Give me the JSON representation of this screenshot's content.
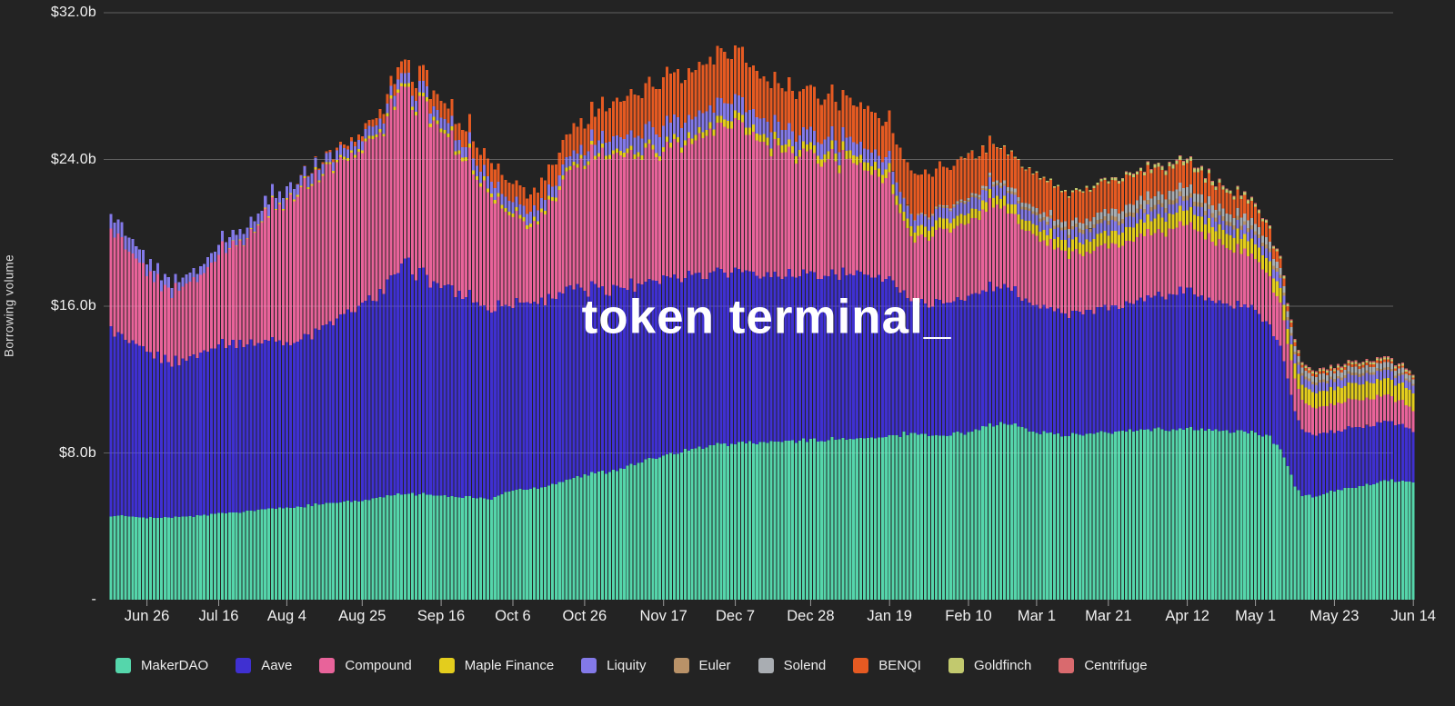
{
  "watermark": {
    "text": "token terminal_"
  },
  "y_axis": {
    "title": "Borrowing volume",
    "ticks": [
      {
        "label": "$32.0b",
        "value": 32
      },
      {
        "label": "$24.0b",
        "value": 24
      },
      {
        "label": "$16.0b",
        "value": 16
      },
      {
        "label": "$8.0b",
        "value": 8
      },
      {
        "label": "-",
        "value": 0
      }
    ]
  },
  "x_axis": {
    "ticks": [
      {
        "label": "Jun 26",
        "day": 10
      },
      {
        "label": "Jul 16",
        "day": 30
      },
      {
        "label": "Aug 4",
        "day": 49
      },
      {
        "label": "Aug 25",
        "day": 70
      },
      {
        "label": "Sep 16",
        "day": 92
      },
      {
        "label": "Oct 6",
        "day": 112
      },
      {
        "label": "Oct 26",
        "day": 132
      },
      {
        "label": "Nov 17",
        "day": 154
      },
      {
        "label": "Dec 7",
        "day": 174
      },
      {
        "label": "Dec 28",
        "day": 195
      },
      {
        "label": "Jan 19",
        "day": 217
      },
      {
        "label": "Feb 10",
        "day": 239
      },
      {
        "label": "Mar 1",
        "day": 258
      },
      {
        "label": "Mar 21",
        "day": 278
      },
      {
        "label": "Apr 12",
        "day": 300
      },
      {
        "label": "May 1",
        "day": 319
      },
      {
        "label": "May 23",
        "day": 341
      },
      {
        "label": "Jun 14",
        "day": 363
      }
    ]
  },
  "chart_data": {
    "type": "bar",
    "variant": "stacked-daily-bars",
    "title": "token terminal_",
    "ylabel": "Borrowing volume",
    "unit": "USD billions",
    "ylim": [
      0,
      32
    ],
    "grid": "horizontal",
    "legend_position": "bottom",
    "days": 364,
    "x_range_labels": [
      "Jun 26",
      "Jul 16",
      "Aug 4",
      "Aug 25",
      "Sep 16",
      "Oct 6",
      "Oct 26",
      "Nov 17",
      "Dec 7",
      "Dec 28",
      "Jan 19",
      "Feb 10",
      "Mar 1",
      "Mar 21",
      "Apr 12",
      "May 1",
      "May 23",
      "Jun 14"
    ],
    "series": [
      {
        "name": "MakerDAO",
        "color": "#55d6ab"
      },
      {
        "name": "Aave",
        "color": "#3f30d1"
      },
      {
        "name": "Compound",
        "color": "#e8639a"
      },
      {
        "name": "Maple Finance",
        "color": "#e3cd1d"
      },
      {
        "name": "Liquity",
        "color": "#8379e8"
      },
      {
        "name": "Euler",
        "color": "#b99268"
      },
      {
        "name": "Solend",
        "color": "#a9adb2"
      },
      {
        "name": "BENQI",
        "color": "#e55a22"
      },
      {
        "name": "Goldfinch",
        "color": "#c2c96e"
      },
      {
        "name": "Centrifuge",
        "color": "#d96a6e"
      }
    ],
    "keyframes_note": "v = [MakerDAO, Aave, Compound, Maple Finance, Liquity, Euler, Solend, BENQI, Goldfinch, Centrifuge] in $ billions at day index d (day 0 = left edge, ~Jun 16; day 363 = Jun 14). Daily bars are linearly interpolated between keyframes.",
    "keyframes": [
      {
        "d": 0,
        "v": [
          4.6,
          10.3,
          5.6,
          0.0,
          0.85,
          0,
          0,
          0.0,
          0.0,
          0.0
        ]
      },
      {
        "d": 3,
        "v": [
          4.55,
          9.7,
          5.1,
          0.0,
          0.8,
          0,
          0,
          0.0,
          0.0,
          0.0
        ]
      },
      {
        "d": 7,
        "v": [
          4.5,
          9.15,
          4.5,
          0.0,
          0.7,
          0,
          0,
          0.0,
          0.0,
          0.0
        ]
      },
      {
        "d": 13,
        "v": [
          4.45,
          8.75,
          4.1,
          0.0,
          0.6,
          0,
          0,
          0.0,
          0.0,
          0.0
        ]
      },
      {
        "d": 19,
        "v": [
          4.5,
          8.5,
          3.9,
          0.0,
          0.5,
          0,
          0,
          0.0,
          0.0,
          0.0
        ]
      },
      {
        "d": 25,
        "v": [
          4.6,
          8.9,
          4.3,
          0.0,
          0.5,
          0,
          0,
          0.0,
          0.0,
          0.0
        ]
      },
      {
        "d": 30,
        "v": [
          4.7,
          9.3,
          4.9,
          0.0,
          0.55,
          0,
          0,
          0.0,
          0.0,
          0.0
        ]
      },
      {
        "d": 38,
        "v": [
          4.85,
          9.25,
          5.9,
          0.04,
          0.6,
          0,
          0,
          0.0,
          0.0,
          0.0
        ]
      },
      {
        "d": 49,
        "v": [
          5.0,
          9.0,
          7.9,
          0.08,
          0.6,
          0,
          0,
          0.0,
          0.0,
          0.0
        ]
      },
      {
        "d": 56,
        "v": [
          5.15,
          9.4,
          8.3,
          0.1,
          0.55,
          0,
          0,
          0.05,
          0.0,
          0.0
        ]
      },
      {
        "d": 63,
        "v": [
          5.3,
          10.0,
          8.6,
          0.12,
          0.5,
          0,
          0,
          0.15,
          0.0,
          0.0
        ]
      },
      {
        "d": 70,
        "v": [
          5.4,
          10.6,
          8.5,
          0.15,
          0.5,
          0,
          0,
          0.3,
          0.0,
          0.0
        ]
      },
      {
        "d": 76,
        "v": [
          5.6,
          11.3,
          9.0,
          0.15,
          0.55,
          0,
          0,
          0.5,
          0.0,
          0.0
        ]
      },
      {
        "d": 81,
        "v": [
          5.75,
          12.3,
          9.5,
          0.18,
          0.55,
          0,
          0,
          0.7,
          0.0,
          0.0
        ]
      },
      {
        "d": 83,
        "v": [
          5.8,
          12.6,
          9.55,
          0.2,
          0.55,
          0,
          0,
          0.75,
          0.0,
          0.0
        ]
      },
      {
        "d": 87,
        "v": [
          5.75,
          11.9,
          9.1,
          0.2,
          0.6,
          0,
          0,
          0.8,
          0.0,
          0.0
        ]
      },
      {
        "d": 92,
        "v": [
          5.7,
          11.5,
          8.7,
          0.2,
          0.6,
          0,
          0,
          0.85,
          0.0,
          0.0
        ]
      },
      {
        "d": 99,
        "v": [
          5.6,
          10.9,
          7.5,
          0.2,
          0.6,
          0,
          0,
          0.9,
          0.0,
          0.0
        ]
      },
      {
        "d": 106,
        "v": [
          5.5,
          10.4,
          6.2,
          0.2,
          0.65,
          0,
          0,
          1.0,
          0.0,
          0.0
        ]
      },
      {
        "d": 112,
        "v": [
          6.0,
          10.3,
          4.9,
          0.2,
          0.6,
          0,
          0,
          1.0,
          0.0,
          0.0
        ]
      },
      {
        "d": 116,
        "v": [
          6.0,
          10.15,
          4.1,
          0.2,
          0.6,
          0,
          0,
          0.9,
          0.0,
          0.0
        ]
      },
      {
        "d": 119,
        "v": [
          6.1,
          10.2,
          4.4,
          0.2,
          0.6,
          0,
          0,
          1.0,
          0.0,
          0.0
        ]
      },
      {
        "d": 125,
        "v": [
          6.4,
          10.3,
          5.8,
          0.2,
          0.6,
          0,
          0,
          1.2,
          0.0,
          0.0
        ]
      },
      {
        "d": 132,
        "v": [
          6.8,
          10.1,
          6.9,
          0.2,
          0.55,
          0,
          0,
          1.5,
          0.0,
          0.0
        ]
      },
      {
        "d": 139,
        "v": [
          7.0,
          10.0,
          7.3,
          0.22,
          0.7,
          0,
          0,
          1.85,
          0.0,
          0.0
        ]
      },
      {
        "d": 146,
        "v": [
          7.4,
          9.9,
          7.2,
          0.25,
          0.9,
          0,
          0,
          2.2,
          0.0,
          0.0
        ]
      },
      {
        "d": 154,
        "v": [
          7.9,
          9.8,
          7.05,
          0.25,
          1.1,
          0,
          0,
          2.55,
          0.0,
          0.0
        ]
      },
      {
        "d": 161,
        "v": [
          8.2,
          9.6,
          7.3,
          0.3,
          1.0,
          0,
          0,
          2.5,
          0.0,
          0.0
        ]
      },
      {
        "d": 168,
        "v": [
          8.4,
          9.5,
          7.7,
          0.35,
          0.95,
          0,
          0,
          2.6,
          0.0,
          0.0
        ]
      },
      {
        "d": 172,
        "v": [
          8.5,
          9.45,
          8.05,
          0.4,
          0.95,
          0,
          0,
          2.65,
          0.0,
          0.0
        ]
      },
      {
        "d": 178,
        "v": [
          8.55,
          9.3,
          7.5,
          0.4,
          0.9,
          0,
          0,
          2.45,
          0.0,
          0.0
        ]
      },
      {
        "d": 186,
        "v": [
          8.6,
          9.05,
          6.85,
          0.4,
          0.85,
          0,
          0,
          2.3,
          0.0,
          0.0
        ]
      },
      {
        "d": 195,
        "v": [
          8.7,
          9.0,
          6.4,
          0.4,
          0.8,
          0,
          0,
          2.2,
          0.0,
          0.0
        ]
      },
      {
        "d": 204,
        "v": [
          8.75,
          8.95,
          6.1,
          0.45,
          0.75,
          0,
          0,
          2.2,
          0.0,
          0.0
        ]
      },
      {
        "d": 213,
        "v": [
          8.8,
          8.9,
          5.7,
          0.45,
          0.7,
          0,
          0,
          2.15,
          0.0,
          0.0
        ]
      },
      {
        "d": 217,
        "v": [
          8.9,
          8.7,
          5.4,
          0.5,
          0.7,
          0,
          0,
          2.1,
          0.0,
          0.0
        ]
      },
      {
        "d": 219,
        "v": [
          8.95,
          8.2,
          4.6,
          0.5,
          0.68,
          0.03,
          0.0,
          2.2,
          0.0,
          0.0
        ]
      },
      {
        "d": 221,
        "v": [
          9.05,
          7.5,
          3.8,
          0.52,
          0.65,
          0.05,
          0.0,
          2.35,
          0.0,
          0.0
        ]
      },
      {
        "d": 224,
        "v": [
          9.1,
          7.25,
          3.6,
          0.55,
          0.6,
          0.05,
          0.02,
          2.35,
          0.0,
          0.0
        ]
      },
      {
        "d": 229,
        "v": [
          9.0,
          7.2,
          3.7,
          0.55,
          0.6,
          0.07,
          0.04,
          2.25,
          0.0,
          0.0
        ]
      },
      {
        "d": 232,
        "v": [
          8.9,
          7.3,
          3.9,
          0.55,
          0.6,
          0.08,
          0.06,
          2.2,
          0.0,
          0.0
        ]
      },
      {
        "d": 239,
        "v": [
          9.2,
          7.35,
          4.1,
          0.52,
          0.6,
          0.1,
          0.1,
          2.2,
          0.02,
          0.0
        ]
      },
      {
        "d": 246,
        "v": [
          9.55,
          7.5,
          4.35,
          0.5,
          0.6,
          0.12,
          0.15,
          1.85,
          0.04,
          0.0
        ]
      },
      {
        "d": 252,
        "v": [
          9.5,
          7.2,
          4.0,
          0.52,
          0.55,
          0.14,
          0.2,
          1.85,
          0.05,
          0.0
        ]
      },
      {
        "d": 258,
        "v": [
          9.1,
          7.0,
          3.7,
          0.55,
          0.55,
          0.15,
          0.25,
          1.8,
          0.06,
          0.0
        ]
      },
      {
        "d": 265,
        "v": [
          9.0,
          6.75,
          3.35,
          0.6,
          0.55,
          0.17,
          0.3,
          1.7,
          0.08,
          0.0
        ]
      },
      {
        "d": 271,
        "v": [
          9.05,
          6.6,
          3.2,
          0.65,
          0.55,
          0.2,
          0.35,
          1.6,
          0.1,
          0.0
        ]
      },
      {
        "d": 278,
        "v": [
          9.1,
          6.75,
          3.3,
          0.7,
          0.55,
          0.22,
          0.4,
          1.55,
          0.12,
          0.02
        ]
      },
      {
        "d": 285,
        "v": [
          9.2,
          7.0,
          3.45,
          0.75,
          0.55,
          0.24,
          0.45,
          1.5,
          0.15,
          0.03
        ]
      },
      {
        "d": 292,
        "v": [
          9.3,
          7.35,
          3.55,
          0.8,
          0.55,
          0.25,
          0.48,
          1.45,
          0.18,
          0.04
        ]
      },
      {
        "d": 297,
        "v": [
          9.3,
          7.5,
          3.55,
          0.8,
          0.52,
          0.25,
          0.47,
          1.35,
          0.2,
          0.05
        ]
      },
      {
        "d": 300,
        "v": [
          9.3,
          7.45,
          3.5,
          0.8,
          0.5,
          0.25,
          0.45,
          1.3,
          0.2,
          0.05
        ]
      },
      {
        "d": 306,
        "v": [
          9.25,
          7.2,
          3.35,
          0.8,
          0.5,
          0.24,
          0.44,
          1.15,
          0.18,
          0.05
        ]
      },
      {
        "d": 312,
        "v": [
          9.2,
          6.95,
          3.1,
          0.8,
          0.5,
          0.23,
          0.42,
          1.05,
          0.16,
          0.05
        ]
      },
      {
        "d": 318,
        "v": [
          9.15,
          6.7,
          2.9,
          0.8,
          0.5,
          0.22,
          0.4,
          0.9,
          0.15,
          0.05
        ]
      },
      {
        "d": 323,
        "v": [
          8.8,
          6.2,
          2.6,
          0.8,
          0.5,
          0.2,
          0.38,
          0.7,
          0.12,
          0.05
        ]
      },
      {
        "d": 326,
        "v": [
          8.2,
          5.6,
          2.3,
          0.8,
          0.5,
          0.18,
          0.35,
          0.5,
          0.1,
          0.05
        ]
      },
      {
        "d": 328,
        "v": [
          7.3,
          4.8,
          2.0,
          0.82,
          0.48,
          0.16,
          0.33,
          0.3,
          0.1,
          0.06
        ]
      },
      {
        "d": 330,
        "v": [
          6.2,
          4.0,
          1.7,
          0.84,
          0.47,
          0.15,
          0.31,
          0.2,
          0.1,
          0.07
        ]
      },
      {
        "d": 332,
        "v": [
          5.7,
          3.5,
          1.55,
          0.85,
          0.46,
          0.15,
          0.3,
          0.15,
          0.1,
          0.07
        ]
      },
      {
        "d": 335,
        "v": [
          5.6,
          3.35,
          1.5,
          0.85,
          0.45,
          0.15,
          0.3,
          0.15,
          0.1,
          0.08
        ]
      },
      {
        "d": 341,
        "v": [
          5.9,
          3.3,
          1.5,
          0.85,
          0.45,
          0.15,
          0.3,
          0.15,
          0.1,
          0.08
        ]
      },
      {
        "d": 348,
        "v": [
          6.2,
          3.25,
          1.5,
          0.88,
          0.45,
          0.15,
          0.3,
          0.15,
          0.1,
          0.08
        ]
      },
      {
        "d": 356,
        "v": [
          6.5,
          3.2,
          1.4,
          0.9,
          0.45,
          0.14,
          0.28,
          0.14,
          0.1,
          0.08
        ]
      },
      {
        "d": 360,
        "v": [
          6.5,
          3.05,
          1.3,
          0.92,
          0.43,
          0.12,
          0.27,
          0.12,
          0.09,
          0.08
        ]
      },
      {
        "d": 363,
        "v": [
          6.3,
          2.75,
          1.1,
          0.95,
          0.4,
          0.1,
          0.25,
          0.1,
          0.08,
          0.07
        ]
      }
    ]
  }
}
